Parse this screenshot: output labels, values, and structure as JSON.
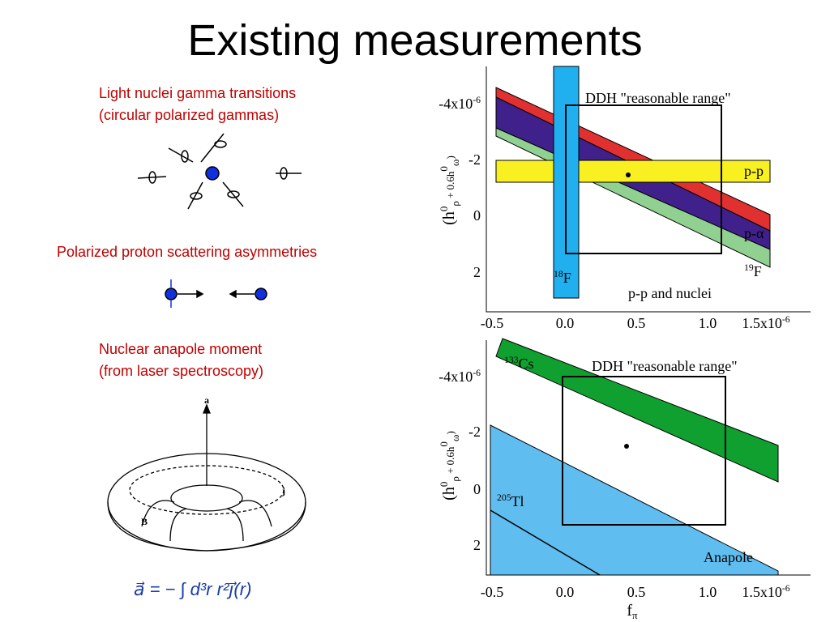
{
  "title": "Existing measurements",
  "sections": [
    {
      "lines": [
        "Light nuclei gamma transitions",
        "(circular polarized gammas)"
      ]
    },
    {
      "lines": [
        "Polarized proton scattering asymmetries"
      ]
    },
    {
      "lines": [
        "Nuclear anapole moment",
        "(from laser spectroscopy)"
      ]
    }
  ],
  "torus_labels": [
    "a",
    "j",
    "B"
  ],
  "equation": "a⃗ = − ∫ d³r  r²j⃗(r)",
  "plots": [
    {
      "y_label": [
        "(h",
        "0",
        "ρ",
        " + 0.6h",
        "0",
        "ω",
        ")"
      ],
      "y_ticks": [
        {
          "base": "-4x10",
          "exp": "-6"
        },
        "-2",
        "0",
        "2"
      ],
      "x_ticks": [
        "-0.5",
        "0.0",
        "0.5",
        "1.0",
        {
          "base": "1.5x10",
          "exp": "-6"
        }
      ],
      "box_label": "DDH \"reasonable range\"",
      "bands": [
        {
          "text": "p-p"
        },
        {
          "text": "p-α"
        },
        {
          "sup": "19",
          "text": "F"
        },
        {
          "sup": "18",
          "text": "F"
        }
      ],
      "caption": "p-p and nuclei"
    },
    {
      "y_label": [
        "(h",
        "0",
        "ρ",
        " + 0.6h",
        "0",
        "ω",
        ")"
      ],
      "y_ticks": [
        {
          "base": "-4x10",
          "exp": "-6"
        },
        "-2",
        "0",
        "2"
      ],
      "x_ticks": [
        "-0.5",
        "0.0",
        "0.5",
        "1.0",
        {
          "base": "1.5x10",
          "exp": "-6"
        }
      ],
      "box_label": "DDH \"reasonable range\"",
      "bands": [
        {
          "sup": "133",
          "text": "Cs"
        },
        {
          "sup": "205",
          "text": "Tl"
        }
      ],
      "caption": "Anapole",
      "x_label": [
        "f",
        "π"
      ]
    }
  ]
}
